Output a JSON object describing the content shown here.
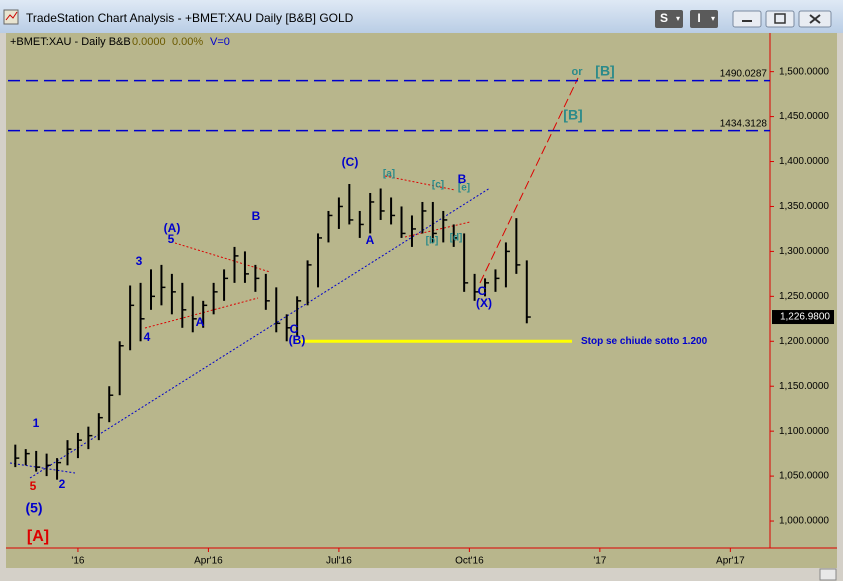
{
  "window": {
    "title": "TradeStation Chart Analysis - +BMET:XAU Daily [B&B] GOLD",
    "buttons": [
      "S",
      "I"
    ]
  },
  "chart_data": {
    "type": "ohlc",
    "header": {
      "symbol": "+BMET:XAU - Daily  B&B",
      "change": "0.0000",
      "change_pct": "0.00%",
      "volume": "V=0"
    },
    "x": [
      2015.88,
      2015.9,
      2015.92,
      2015.94,
      2015.96,
      2015.98,
      2016.0,
      2016.02,
      2016.04,
      2016.06,
      2016.08,
      2016.1,
      2016.12,
      2016.14,
      2016.16,
      2016.18,
      2016.2,
      2016.22,
      2016.24,
      2016.26,
      2016.28,
      2016.3,
      2016.32,
      2016.34,
      2016.36,
      2016.38,
      2016.4,
      2016.42,
      2016.44,
      2016.46,
      2016.48,
      2016.5,
      2016.52,
      2016.54,
      2016.56,
      2016.58,
      2016.6,
      2016.62,
      2016.64,
      2016.66,
      2016.68,
      2016.7,
      2016.72,
      2016.74,
      2016.76,
      2016.78,
      2016.8,
      2016.82,
      2016.84,
      2016.86
    ],
    "high": [
      1085,
      1080,
      1078,
      1075,
      1070,
      1090,
      1098,
      1105,
      1120,
      1150,
      1200,
      1262,
      1265,
      1280,
      1285,
      1275,
      1265,
      1250,
      1245,
      1265,
      1280,
      1305,
      1300,
      1285,
      1275,
      1260,
      1230,
      1250,
      1290,
      1320,
      1345,
      1360,
      1375,
      1345,
      1365,
      1370,
      1360,
      1350,
      1340,
      1355,
      1355,
      1345,
      1330,
      1320,
      1275,
      1270,
      1280,
      1310,
      1337,
      1290
    ],
    "low": [
      1060,
      1062,
      1055,
      1050,
      1046,
      1062,
      1070,
      1080,
      1090,
      1110,
      1140,
      1190,
      1200,
      1235,
      1240,
      1230,
      1215,
      1210,
      1215,
      1230,
      1245,
      1265,
      1265,
      1255,
      1235,
      1210,
      1200,
      1205,
      1240,
      1260,
      1310,
      1325,
      1330,
      1315,
      1320,
      1335,
      1330,
      1315,
      1305,
      1320,
      1310,
      1310,
      1305,
      1255,
      1245,
      1250,
      1255,
      1260,
      1275,
      1220
    ],
    "close": [
      1070,
      1075,
      1060,
      1062,
      1065,
      1080,
      1090,
      1095,
      1115,
      1140,
      1195,
      1240,
      1225,
      1250,
      1260,
      1255,
      1235,
      1225,
      1240,
      1255,
      1270,
      1295,
      1275,
      1270,
      1245,
      1220,
      1215,
      1245,
      1285,
      1315,
      1340,
      1350,
      1335,
      1330,
      1355,
      1345,
      1340,
      1320,
      1325,
      1345,
      1320,
      1335,
      1315,
      1265,
      1255,
      1265,
      1270,
      1300,
      1285,
      1226.98
    ],
    "color": "#000000",
    "xlim": [
      2015.866,
      2017.326
    ],
    "xticks": [
      {
        "value": 2016,
        "label": "'16"
      },
      {
        "value": 2016.25,
        "label": "Apr'16"
      },
      {
        "value": 2016.5,
        "label": "Jul'16"
      },
      {
        "value": 2016.75,
        "label": "Oct'16"
      },
      {
        "value": 2017,
        "label": "'17"
      },
      {
        "value": 2017.25,
        "label": "Apr'17"
      }
    ],
    "ylim": [
      970,
      1543
    ],
    "yticks": [
      {
        "value": 1000,
        "label": "1,000.0000"
      },
      {
        "value": 1050,
        "label": "1,050.0000"
      },
      {
        "value": 1100,
        "label": "1,100.0000"
      },
      {
        "value": 1150,
        "label": "1,150.0000"
      },
      {
        "value": 1200,
        "label": "1,200.0000"
      },
      {
        "value": 1250,
        "label": "1,250.0000"
      },
      {
        "value": 1300,
        "label": "1,300.0000"
      },
      {
        "value": 1350,
        "label": "1,350.0000"
      },
      {
        "value": 1400,
        "label": "1,400.0000"
      },
      {
        "value": 1450,
        "label": "1,450.0000"
      },
      {
        "value": 1500,
        "label": "1,500.0000"
      }
    ],
    "last_price": {
      "value": 1226.98,
      "label": "1,226.9800"
    },
    "hlines": [
      1490.0287,
      1434.3128
    ],
    "hline_color": "#0000cc",
    "stop_line": {
      "value": 1200,
      "label": "Stop se  chiude sotto 1.200",
      "color": "#ffff00"
    },
    "annotations": [
      {
        "text": "(5)",
        "color": "#0000cc"
      },
      {
        "text": "[A]",
        "color": "#dd0000"
      },
      {
        "text": "5",
        "color": "#dd0000"
      },
      {
        "text": "1",
        "color": "#0000cc"
      },
      {
        "text": "2",
        "color": "#0000cc"
      },
      {
        "text": "3",
        "color": "#0000cc"
      },
      {
        "text": "4",
        "color": "#0000cc"
      },
      {
        "text": "5",
        "color": "#0000cc"
      },
      {
        "text": "(A)",
        "color": "#0000cc"
      },
      {
        "text": "A",
        "color": "#0000cc"
      },
      {
        "text": "B",
        "color": "#0000cc"
      },
      {
        "text": "C",
        "color": "#0000cc"
      },
      {
        "text": "(B)",
        "color": "#0000cc"
      },
      {
        "text": "(C)",
        "color": "#0000cc"
      },
      {
        "text": "A",
        "color": "#0000cc"
      },
      {
        "text": "[a]",
        "color": "#2a8a8a"
      },
      {
        "text": "[c]",
        "color": "#2a8a8a"
      },
      {
        "text": "[e]",
        "color": "#2a8a8a"
      },
      {
        "text": "B",
        "color": "#0000cc"
      },
      {
        "text": "[b]",
        "color": "#2a8a8a"
      },
      {
        "text": "[d]",
        "color": "#2a8a8a"
      },
      {
        "text": "C",
        "color": "#0000cc"
      },
      {
        "text": "(X)",
        "color": "#0000cc"
      },
      {
        "text": "[B]",
        "color": "#2a8a8a"
      },
      {
        "text": "or",
        "color": "#2a8a8a"
      },
      {
        "text": "[B]",
        "color": "#2a8a8a"
      }
    ],
    "background": "#b8b68c"
  }
}
